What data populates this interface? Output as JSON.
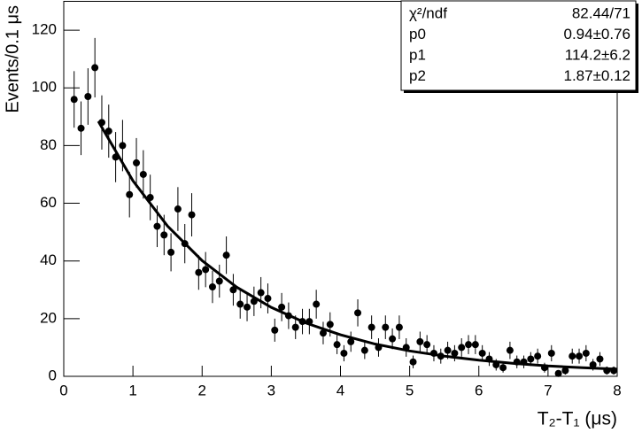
{
  "chart_data": {
    "type": "scatter",
    "x_label": "T₂-T₁ (μs)",
    "y_label": "Events/0.1 μs",
    "xlim": [
      0,
      8
    ],
    "ylim": [
      0,
      130
    ],
    "xticks": [
      0,
      1,
      2,
      3,
      4,
      5,
      6,
      7,
      8
    ],
    "yticks": [
      0,
      20,
      40,
      60,
      80,
      100,
      120
    ],
    "series": [
      {
        "type": "scatter",
        "color": "#000000",
        "x": [
          0.15,
          0.25,
          0.35,
          0.45,
          0.55,
          0.65,
          0.75,
          0.85,
          0.95,
          1.05,
          1.15,
          1.25,
          1.35,
          1.45,
          1.55,
          1.65,
          1.75,
          1.85,
          1.95,
          2.05,
          2.15,
          2.25,
          2.35,
          2.45,
          2.55,
          2.65,
          2.75,
          2.85,
          2.95,
          3.05,
          3.15,
          3.25,
          3.35,
          3.45,
          3.55,
          3.65,
          3.75,
          3.85,
          3.95,
          4.05,
          4.15,
          4.25,
          4.35,
          4.45,
          4.55,
          4.65,
          4.75,
          4.85,
          4.95,
          5.05,
          5.15,
          5.25,
          5.35,
          5.45,
          5.55,
          5.65,
          5.75,
          5.85,
          5.95,
          6.05,
          6.15,
          6.25,
          6.35,
          6.45,
          6.55,
          6.65,
          6.75,
          6.85,
          6.95,
          7.05,
          7.15,
          7.25,
          7.35,
          7.45,
          7.55,
          7.65,
          7.75,
          7.85,
          7.95
        ],
        "values": [
          96,
          86,
          97,
          107,
          88,
          85,
          76,
          80,
          63,
          74,
          70,
          62,
          52,
          49,
          43,
          58,
          46,
          56,
          36,
          37,
          31,
          33,
          42,
          30,
          25,
          24,
          26,
          29,
          27,
          16,
          24,
          21,
          17,
          19,
          19,
          25,
          15,
          18,
          11,
          8,
          12,
          22,
          9,
          17,
          10,
          17,
          13,
          17,
          10,
          5,
          12,
          11,
          8,
          7,
          9,
          8,
          10,
          11,
          11,
          8,
          6,
          4,
          3,
          9,
          5,
          5,
          6,
          7,
          3,
          8,
          1,
          2,
          7,
          7,
          8,
          4,
          6,
          2,
          2
        ],
        "errors": [
          9.8,
          9.3,
          9.8,
          10.3,
          9.4,
          9.2,
          8.7,
          8.9,
          7.9,
          8.6,
          8.4,
          7.9,
          7.2,
          7.0,
          6.6,
          7.6,
          6.8,
          7.5,
          6.0,
          6.1,
          5.6,
          5.7,
          6.5,
          5.5,
          5.0,
          4.9,
          5.1,
          5.4,
          5.2,
          4.0,
          4.9,
          4.6,
          4.1,
          4.4,
          4.4,
          5.0,
          3.9,
          4.2,
          3.3,
          2.8,
          3.5,
          4.7,
          3.0,
          4.1,
          3.2,
          4.1,
          3.6,
          4.1,
          3.2,
          2.2,
          3.5,
          3.3,
          2.8,
          2.6,
          3.0,
          2.8,
          3.2,
          3.3,
          3.3,
          2.8,
          2.4,
          2.0,
          1.7,
          3.0,
          2.2,
          2.2,
          2.4,
          2.6,
          1.7,
          2.8,
          1.0,
          1.4,
          2.6,
          2.6,
          2.8,
          2.0,
          2.4,
          1.4,
          1.4
        ]
      },
      {
        "type": "line",
        "color": "#000000",
        "x": [
          0.5,
          1.0,
          1.5,
          2.0,
          2.5,
          3.0,
          3.5,
          4.0,
          4.5,
          5.0,
          5.5,
          6.0,
          6.5,
          7.0,
          7.5,
          8.0
        ],
        "values": [
          88.4,
          67.8,
          52.1,
          40.1,
          30.9,
          23.9,
          18.5,
          14.4,
          11.2,
          8.8,
          7.0,
          5.6,
          4.5,
          3.6,
          3.0,
          2.5
        ]
      }
    ],
    "stats": [
      [
        "χ²/ndf",
        "82.44/71"
      ],
      [
        "p0",
        "0.94±0.76"
      ],
      [
        "p1",
        "114.2±6.2"
      ],
      [
        "p2",
        "1.87±0.12"
      ]
    ]
  }
}
